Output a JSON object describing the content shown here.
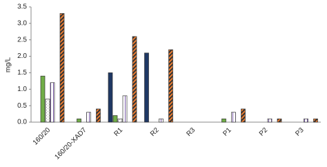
{
  "chart_data": {
    "type": "bar",
    "y_label": "mg/L",
    "categories": [
      "160/20",
      "160/20-XAD7",
      "R1",
      "R2",
      "R3",
      "P1",
      "P2",
      "P3"
    ],
    "series": [
      {
        "color": "#1f3864",
        "pattern": "solid",
        "values": [
          0,
          0,
          1.5,
          2.1,
          0,
          0,
          0,
          0
        ]
      },
      {
        "color": "#70ad47",
        "pattern": "solid",
        "values": [
          1.4,
          0.1,
          0.2,
          0,
          0,
          0.1,
          0,
          0
        ]
      },
      {
        "color": "#a0a0a0",
        "pattern": "dots",
        "values": [
          0.7,
          0,
          0.1,
          0,
          0,
          0,
          0,
          0
        ]
      },
      {
        "color": "#7a5aa8",
        "pattern": "vertical",
        "values": [
          1.2,
          0.3,
          0.8,
          0.1,
          0,
          0.3,
          0.1,
          0.1
        ]
      },
      {
        "color": "#ed7d31",
        "pattern": "diagonal",
        "values": [
          3.3,
          0.4,
          2.6,
          2.2,
          0,
          0.4,
          0.1,
          0.1
        ]
      }
    ],
    "ylim": [
      0,
      3.5
    ],
    "yticks": [
      {
        "value": 0,
        "label": "0.0"
      },
      0.5,
      {
        "value": 1,
        "label": "1.0"
      },
      1.5,
      {
        "value": 2,
        "label": "2.0"
      },
      2.5,
      {
        "value": 3,
        "label": "3.0"
      },
      3.5
    ],
    "grid": false
  }
}
